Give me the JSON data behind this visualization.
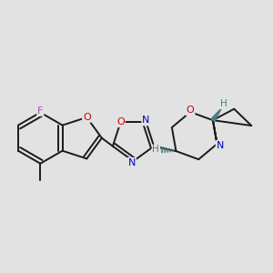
{
  "bg_color": "#e2e2e2",
  "bond_color": "#1a1a1a",
  "bond_width": 1.4,
  "atom_O_color": "#cc0000",
  "atom_N_color": "#0000cc",
  "atom_F_color": "#bb44bb",
  "atom_H_color": "#4a8080",
  "figsize": [
    3.0,
    3.0
  ],
  "dpi": 100,
  "xlim": [
    -3.5,
    5.5
  ],
  "ylim": [
    -4.0,
    4.5
  ]
}
